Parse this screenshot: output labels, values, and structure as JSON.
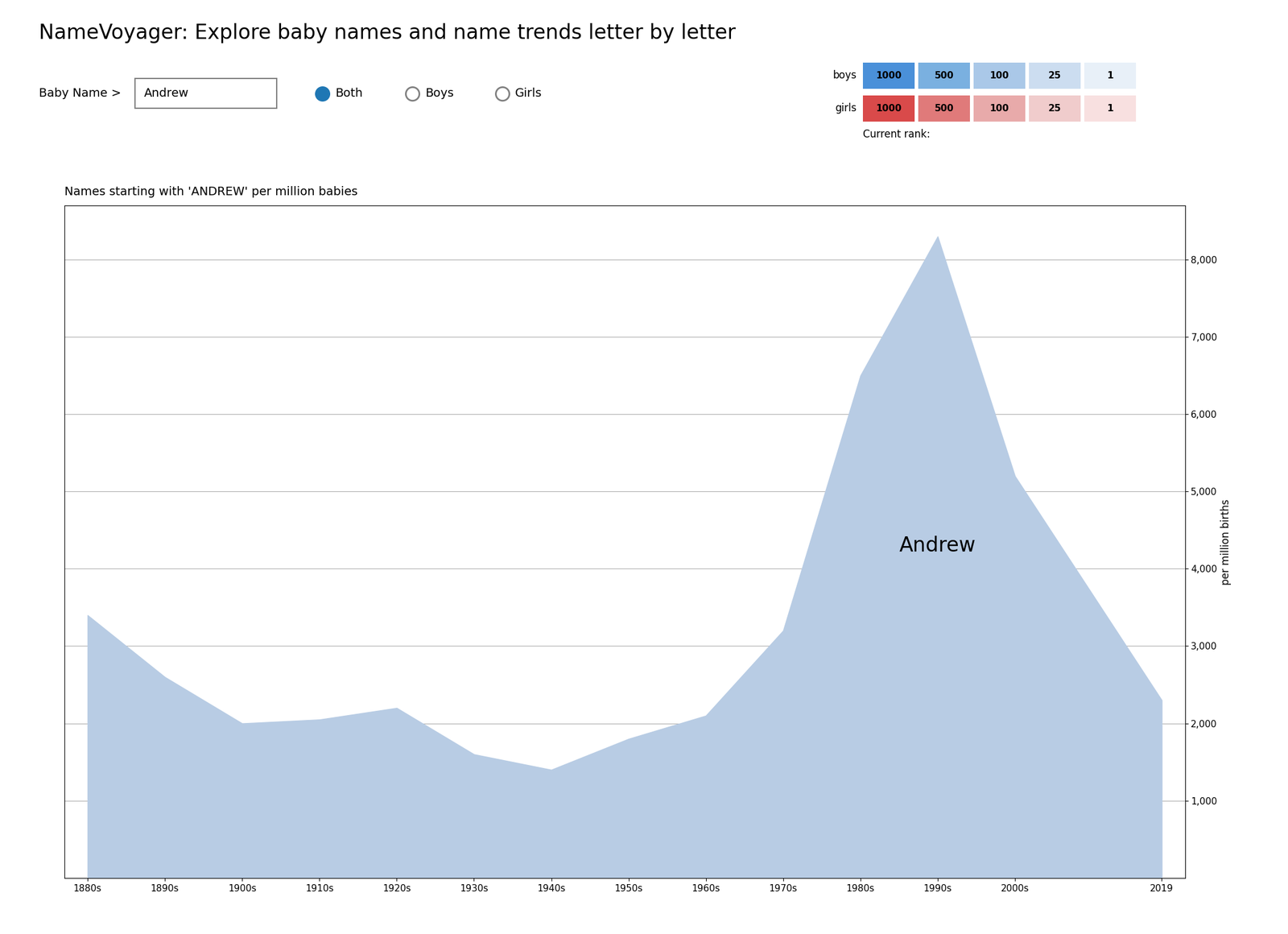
{
  "chart_data": {
    "type": "area",
    "title": "NameVoyager: Explore baby names and name trends letter by letter",
    "subtitle": "Names starting with 'ANDREW' per million babies",
    "ylabel": "per million births",
    "x": [
      1880,
      1890,
      1900,
      1910,
      1920,
      1930,
      1940,
      1950,
      1960,
      1970,
      1980,
      1990,
      2000,
      2019
    ],
    "values": [
      3400,
      2600,
      2000,
      2050,
      2200,
      1600,
      1400,
      1800,
      2100,
      3200,
      6500,
      8300,
      5200,
      2300
    ],
    "color": "#b8cce4",
    "xlim": [
      1877,
      2022
    ],
    "xticks": [
      {
        "value": 1880,
        "label": "1880s"
      },
      {
        "value": 1890,
        "label": "1890s"
      },
      {
        "value": 1900,
        "label": "1900s"
      },
      {
        "value": 1910,
        "label": "1910s"
      },
      {
        "value": 1920,
        "label": "1920s"
      },
      {
        "value": 1930,
        "label": "1930s"
      },
      {
        "value": 1940,
        "label": "1940s"
      },
      {
        "value": 1950,
        "label": "1950s"
      },
      {
        "value": 1960,
        "label": "1960s"
      },
      {
        "value": 1970,
        "label": "1970s"
      },
      {
        "value": 1980,
        "label": "1980s"
      },
      {
        "value": 1990,
        "label": "1990s"
      },
      {
        "value": 2000,
        "label": "2000s"
      },
      2019
    ],
    "ylim": [
      0,
      8700
    ],
    "yticks": [
      {
        "value": 1000,
        "label": "1,000"
      },
      {
        "value": 2000,
        "label": "2,000"
      },
      {
        "value": 3000,
        "label": "3,000"
      },
      {
        "value": 4000,
        "label": "4,000"
      },
      {
        "value": 5000,
        "label": "5,000"
      },
      {
        "value": 6000,
        "label": "6,000"
      },
      {
        "value": 7000,
        "label": "7,000"
      },
      {
        "value": 8000,
        "label": "8,000"
      }
    ],
    "grid": "y",
    "annotations": [
      {
        "text": "Andrew",
        "x": 1990,
        "y": 4300
      }
    ],
    "name_input": {
      "label": "Baby Name >",
      "text": "Andrew"
    },
    "radio_options": [
      "Both",
      "Boys",
      "Girls"
    ],
    "radio_selected": "Both",
    "rank_legend": {
      "title": "Current rank:",
      "labels": [
        "1000",
        "500",
        "100",
        "25",
        "1"
      ],
      "rows": [
        {
          "name": "boys",
          "colors": [
            "#4a90d9",
            "#7ab0e0",
            "#aac8e8",
            "#ccddf0",
            "#e8f0f8"
          ]
        },
        {
          "name": "girls",
          "colors": [
            "#d94a4a",
            "#e07a7a",
            "#e8aaaa",
            "#f0cccc",
            "#f8e0e0"
          ]
        }
      ]
    }
  }
}
